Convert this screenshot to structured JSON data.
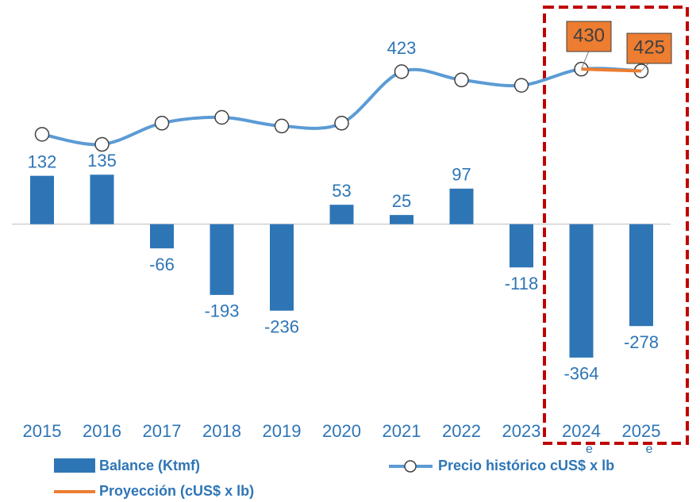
{
  "chart_data": {
    "type": "bar-line",
    "categories": [
      "2015",
      "2016",
      "2017",
      "2018",
      "2019",
      "2020",
      "2021",
      "2022",
      "2023",
      "2024e",
      "2025e"
    ],
    "series": [
      {
        "name": "Balance (Ktmf)",
        "type": "bar",
        "color": "#2e75b6",
        "values": [
          132,
          135,
          -66,
          -193,
          -236,
          53,
          25,
          97,
          -118,
          -364,
          -278
        ]
      },
      {
        "name": "Precio histórico cUS$ x lb",
        "type": "line",
        "axis": "y2",
        "color": "#5b9bd5",
        "values": [
          249,
          221,
          280,
          296,
          272,
          280,
          423,
          400,
          385,
          430,
          425
        ]
      },
      {
        "name": "Proyección (cUS$ x lb)",
        "type": "line",
        "axis": "y2",
        "color": "#ed7d31",
        "values": [
          null,
          null,
          null,
          null,
          null,
          null,
          null,
          null,
          null,
          430,
          425
        ]
      }
    ],
    "ylim": [
      -520,
      590
    ],
    "y2lim": [
      -530,
      600
    ]
  }
}
